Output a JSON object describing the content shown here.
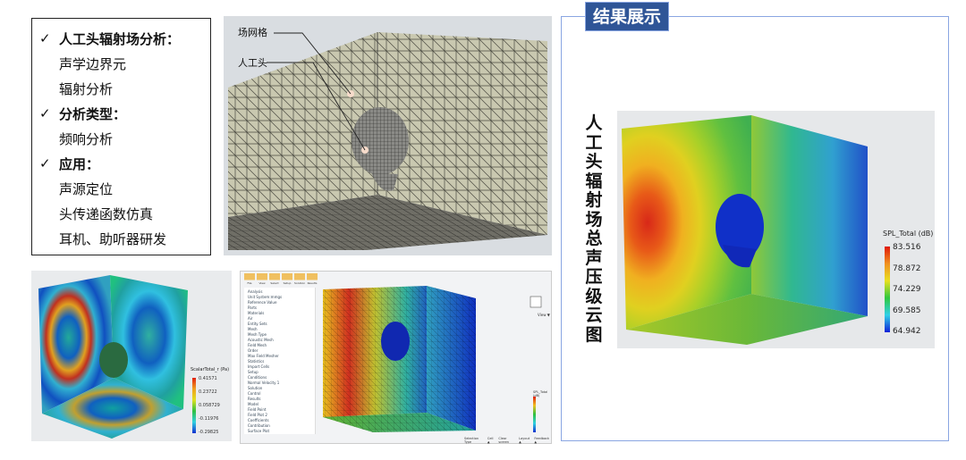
{
  "info_box": {
    "items": [
      {
        "type": "head",
        "check": "✓",
        "label": "人工头辐射场分析："
      },
      {
        "type": "sub",
        "label": "声学边界元"
      },
      {
        "type": "sub",
        "label": "辐射分析"
      },
      {
        "type": "head",
        "check": "✓",
        "label": "分析类型："
      },
      {
        "type": "sub",
        "label": "频响分析"
      },
      {
        "type": "head",
        "check": "✓",
        "label": "应用："
      },
      {
        "type": "sub",
        "label": "声源定位"
      },
      {
        "type": "sub",
        "label": "头传递函数仿真"
      },
      {
        "type": "sub",
        "label": "耳机、助听器研发"
      }
    ]
  },
  "mesh_figure": {
    "label_field_mesh": "场网格",
    "label_head": "人工头"
  },
  "scalar_figure": {
    "legend_title": "ScalarTotal_r (Pa)",
    "legend_values": [
      "0.41571",
      "0.23722",
      "0.058729",
      "-0.11976",
      "-0.29825"
    ]
  },
  "app_screenshot": {
    "toolbar": [
      "File",
      "View",
      "Select",
      "Setup",
      "Solution",
      "Results"
    ],
    "tree": [
      "Analysis",
      "Unit System:mmgs",
      "Reference Value",
      "Parts",
      "Materials",
      "Air",
      "Entity Sets",
      "Mesh",
      "Mesh Type",
      "Acoustic Mesh",
      "Field Mesh",
      "Order",
      "Max Field Mesher",
      "Statistics",
      "Import Cells",
      "Setup",
      "Conditions",
      "Normal Velocity 1",
      "Solution",
      "Control",
      "Results",
      "Model",
      "Field Point",
      "Field Plot 2",
      "Coefficients",
      "Contribution",
      "Surface Plot"
    ],
    "view_label": "View ▼",
    "legend_title": "SPL_Total (dB)",
    "status_items": [
      "Selection Type",
      "Cell ▲",
      "Clear screen",
      "Layout ▲",
      "Feedback ▲"
    ]
  },
  "result_panel": {
    "title": "结果展示",
    "vertical_title": "人工头辐射场总声压级云图",
    "legend_title": "SPL_Total (dB)",
    "legend_values": [
      "83.516",
      "78.872",
      "74.229",
      "69.585",
      "64.942"
    ]
  },
  "colors": {
    "panel_border": "#8aa6e2",
    "title_bg": "#2f5597"
  }
}
